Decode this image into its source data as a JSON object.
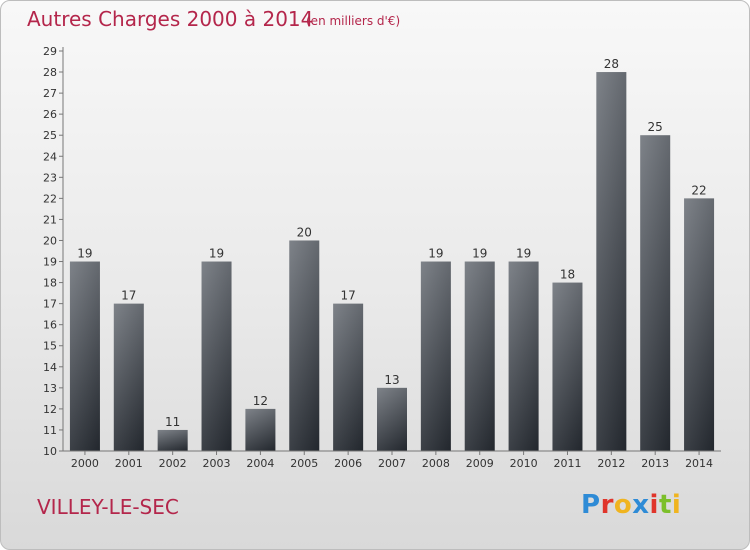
{
  "header": {
    "title": "Autres Charges 2000 à 2014",
    "subtitle": "(en milliers d'€)"
  },
  "footer": {
    "commune": "VILLEY-LE-SEC"
  },
  "logo": {
    "letters": [
      "P",
      "r",
      "o",
      "x",
      "i",
      "t",
      "i"
    ],
    "colors": [
      "#2e8bd6",
      "#e0352b",
      "#f0b41f",
      "#2e8bd6",
      "#e0352b",
      "#7cbf2a",
      "#f0b41f"
    ]
  },
  "chart_data": {
    "type": "bar",
    "title": "Autres Charges 2000 à 2014",
    "subtitle": "(en milliers d'€)",
    "categories": [
      "2000",
      "2001",
      "2002",
      "2003",
      "2004",
      "2005",
      "2006",
      "2007",
      "2008",
      "2009",
      "2010",
      "2011",
      "2012",
      "2013",
      "2014"
    ],
    "values": [
      19,
      17,
      11,
      19,
      12,
      20,
      17,
      13,
      19,
      19,
      19,
      18,
      28,
      25,
      22
    ],
    "ylim": [
      10,
      29
    ],
    "yticks": [
      10,
      11,
      12,
      13,
      14,
      15,
      16,
      17,
      18,
      19,
      20,
      21,
      22,
      23,
      24,
      25,
      26,
      27,
      28,
      29
    ],
    "grid": false,
    "xlabel": "",
    "ylabel": "",
    "bar_color": "#3a3f46"
  }
}
